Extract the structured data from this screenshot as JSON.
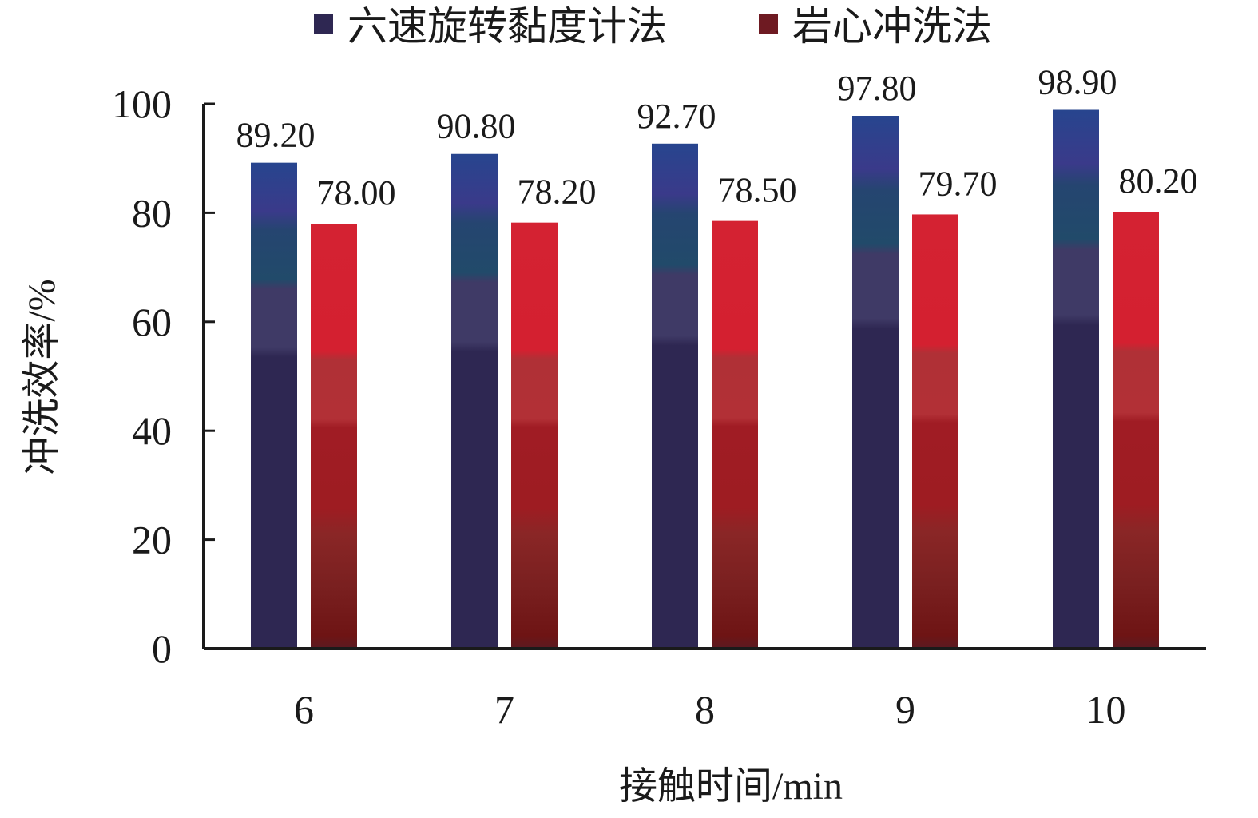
{
  "chart_data": {
    "type": "bar",
    "title": "",
    "categories": [
      "6",
      "7",
      "8",
      "9",
      "10"
    ],
    "series": [
      {
        "name": "六速旋转黏度计法",
        "color": "#2e2752",
        "values": [
          89.2,
          90.8,
          92.7,
          97.8,
          98.9
        ],
        "labels": [
          "89.20",
          "90.80",
          "92.70",
          "97.80",
          "98.90"
        ]
      },
      {
        "name": "岩心冲洗法",
        "color": "#d42030",
        "values": [
          78.0,
          78.2,
          78.5,
          79.7,
          80.2
        ],
        "labels": [
          "78.00",
          "78.20",
          "78.50",
          "79.70",
          "80.20"
        ]
      }
    ],
    "xlabel": "接触时间/min",
    "ylabel": "冲洗效率/%",
    "ylim": [
      0,
      100
    ],
    "yticks": [
      "0",
      "20",
      "40",
      "60",
      "80",
      "100"
    ],
    "legend_position": "top",
    "grid": false
  }
}
